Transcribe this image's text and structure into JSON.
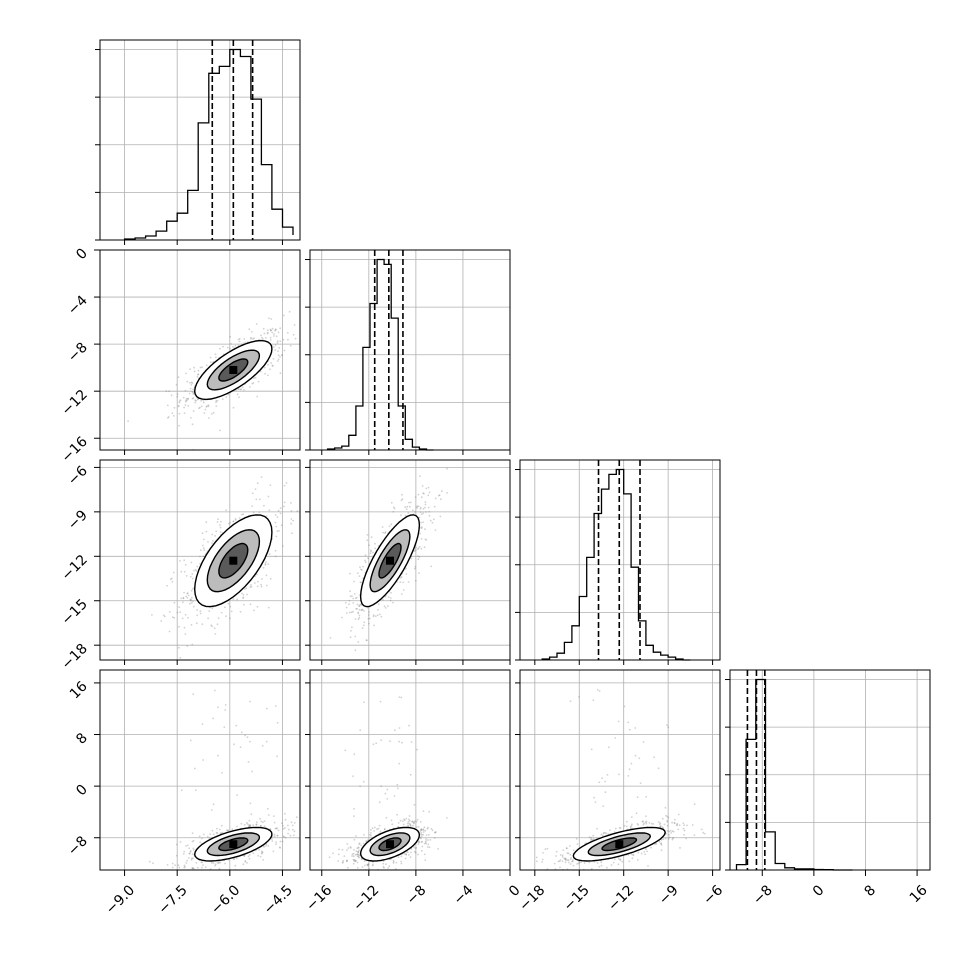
{
  "chart_data": {
    "type": "corner",
    "title": "",
    "n_params": 4,
    "parameters": [
      {
        "label": "",
        "range": [
          -9.7,
          -4.0
        ],
        "ticks": [
          -9.0,
          -7.5,
          -6.0,
          -4.5
        ],
        "tick_labels": [
          "−9.0",
          "−7.5",
          "−6.0",
          "−4.5"
        ],
        "quantiles": [
          -6.5,
          -5.9,
          -5.35
        ],
        "hist_bins": [
          -9.0,
          -8.7,
          -8.4,
          -8.1,
          -7.8,
          -7.5,
          -7.2,
          -6.9,
          -6.6,
          -6.3,
          -6.0,
          -5.7,
          -5.4,
          -5.1,
          -4.8,
          -4.5,
          -4.2
        ],
        "hist_counts": [
          1,
          2,
          4,
          9,
          19,
          27,
          50,
          118,
          168,
          175,
          192,
          185,
          142,
          76,
          31,
          13,
          5
        ]
      },
      {
        "label": "",
        "range": [
          -17.0,
          0.0
        ],
        "ticks": [
          -16,
          -12,
          -8,
          -4,
          0
        ],
        "tick_labels": [
          "−16",
          "−12",
          "−8",
          "−4",
          "0"
        ],
        "quantiles": [
          -11.5,
          -10.3,
          -9.1
        ],
        "hist_bins": [
          -15.5,
          -14.9,
          -14.3,
          -13.7,
          -13.1,
          -12.5,
          -11.9,
          -11.3,
          -10.7,
          -10.1,
          -9.5,
          -8.9,
          -8.3,
          -7.7,
          -7.1,
          -6.5
        ],
        "hist_counts": [
          1,
          2,
          4,
          15,
          45,
          105,
          150,
          195,
          190,
          135,
          45,
          11,
          3,
          1,
          0
        ]
      },
      {
        "label": "",
        "range": [
          -19.0,
          -5.5
        ],
        "ticks": [
          -18,
          -15,
          -12,
          -9,
          -6
        ],
        "tick_labels": [
          "−18",
          "−15",
          "−12",
          "−9",
          "−6"
        ],
        "quantiles": [
          -13.7,
          -12.3,
          -10.9
        ],
        "hist_bins": [
          -17.5,
          -17.0,
          -16.5,
          -16.0,
          -15.5,
          -15.0,
          -14.5,
          -14.0,
          -13.5,
          -13.0,
          -12.5,
          -12.0,
          -11.5,
          -11.0,
          -10.5,
          -10.0,
          -9.5,
          -9.0,
          -8.5,
          -8.0,
          -7.5
        ],
        "hist_counts": [
          1,
          3,
          7,
          18,
          35,
          65,
          105,
          150,
          175,
          190,
          195,
          170,
          95,
          40,
          15,
          8,
          5,
          3,
          1,
          0
        ]
      },
      {
        "label": "",
        "range": [
          -13.0,
          18.0
        ],
        "ticks": [
          -8,
          0,
          8,
          16
        ],
        "tick_labels": [
          "−8",
          "0",
          "8",
          "16"
        ],
        "quantiles": [
          -10.3,
          -8.9,
          -7.6
        ],
        "hist_bins": [
          -12.0,
          -10.5,
          -9.0,
          -7.5,
          -6.0,
          -4.5,
          -3.0,
          -1.5,
          0.0,
          1.5,
          3.0,
          4.5,
          6.0
        ],
        "hist_counts": [
          5,
          120,
          175,
          35,
          6,
          2,
          1,
          1,
          0.5,
          0.3,
          0,
          0
        ]
      }
    ],
    "pairs": [
      {
        "row": 1,
        "col": 0,
        "mean": [
          -5.9,
          -10.2
        ],
        "sigma": [
          0.55,
          1.25
        ],
        "corr": 0.72
      },
      {
        "row": 2,
        "col": 0,
        "mean": [
          -5.9,
          -12.3
        ],
        "sigma": [
          0.55,
          1.55
        ],
        "corr": 0.62
      },
      {
        "row": 2,
        "col": 1,
        "mean": [
          -10.2,
          -12.3
        ],
        "sigma": [
          1.25,
          1.55
        ],
        "corr": 0.78
      },
      {
        "row": 3,
        "col": 0,
        "mean": [
          -5.9,
          -9.0
        ],
        "sigma": [
          0.55,
          1.3
        ],
        "corr": 0.6
      },
      {
        "row": 3,
        "col": 1,
        "mean": [
          -10.2,
          -9.0
        ],
        "sigma": [
          1.25,
          1.3
        ],
        "corr": 0.55
      },
      {
        "row": 3,
        "col": 2,
        "mean": [
          -12.3,
          -9.0
        ],
        "sigma": [
          1.55,
          1.3
        ],
        "corr": 0.7
      }
    ],
    "grid": true,
    "colors": {
      "line": "#000000",
      "grid": "#b0b0b0",
      "scatter": "#7f7f7f",
      "fill_light": "#ffffff",
      "fill_mid": "#bcbcbc",
      "fill_dark": "#5a5a5a",
      "fill_core": "#000000"
    }
  }
}
